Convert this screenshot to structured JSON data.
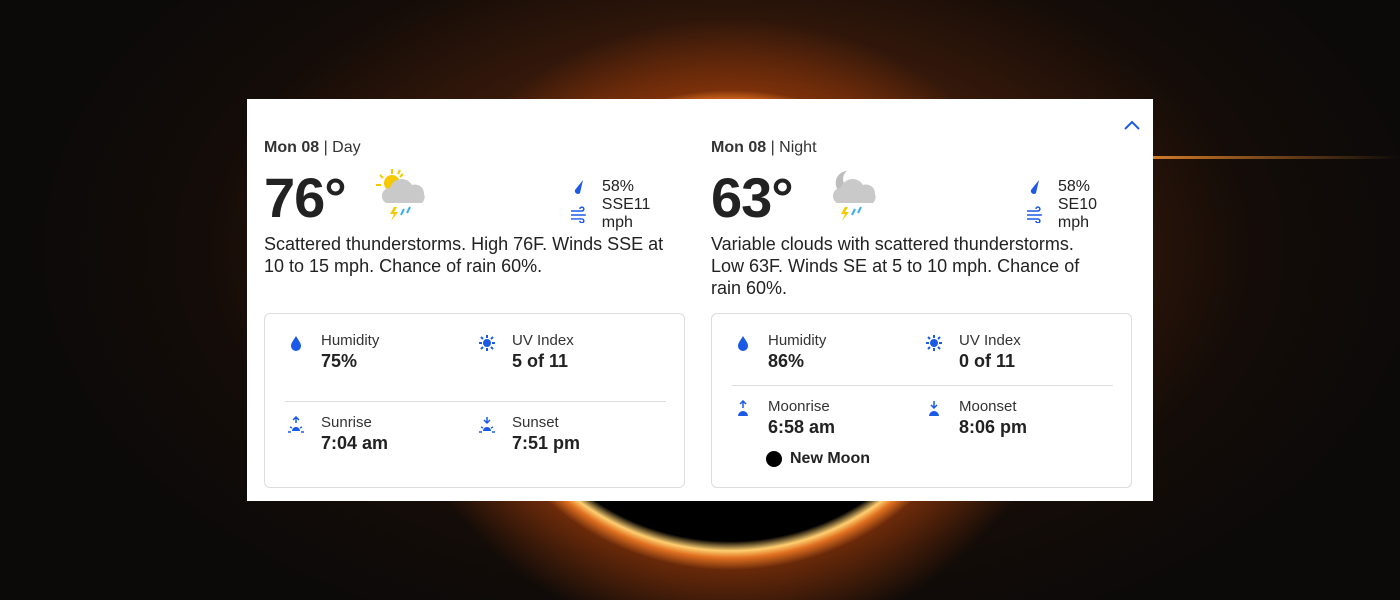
{
  "colors": {
    "accent": "#1a5ae6",
    "text": "#222222"
  },
  "day": {
    "date": "Mon 08",
    "period": "Day",
    "temp": "76°",
    "icon": "scattered-thunderstorms-day-icon",
    "precip": "58%",
    "wind": "SSE11 mph",
    "description": "Scattered thunderstorms. High 76F. Winds SSE at 10 to 15 mph. Chance of rain 60%.",
    "humidity_label": "Humidity",
    "humidity": "75%",
    "uv_label": "UV Index",
    "uv": "5 of 11",
    "rise_label": "Sunrise",
    "rise": "7:04 am",
    "set_label": "Sunset",
    "set": "7:51 pm"
  },
  "night": {
    "date": "Mon 08",
    "period": "Night",
    "temp": "63°",
    "icon": "scattered-thunderstorms-night-icon",
    "precip": "58%",
    "wind": "SE10 mph",
    "description": "Variable clouds with scattered thunderstorms. Low 63F. Winds SE at 5 to 10 mph. Chance of rain 60%.",
    "humidity_label": "Humidity",
    "humidity": "86%",
    "uv_label": "UV Index",
    "uv": "0 of 11",
    "rise_label": "Moonrise",
    "rise": "6:58 am",
    "set_label": "Moonset",
    "set": "8:06 pm",
    "moon_phase": "New Moon"
  }
}
